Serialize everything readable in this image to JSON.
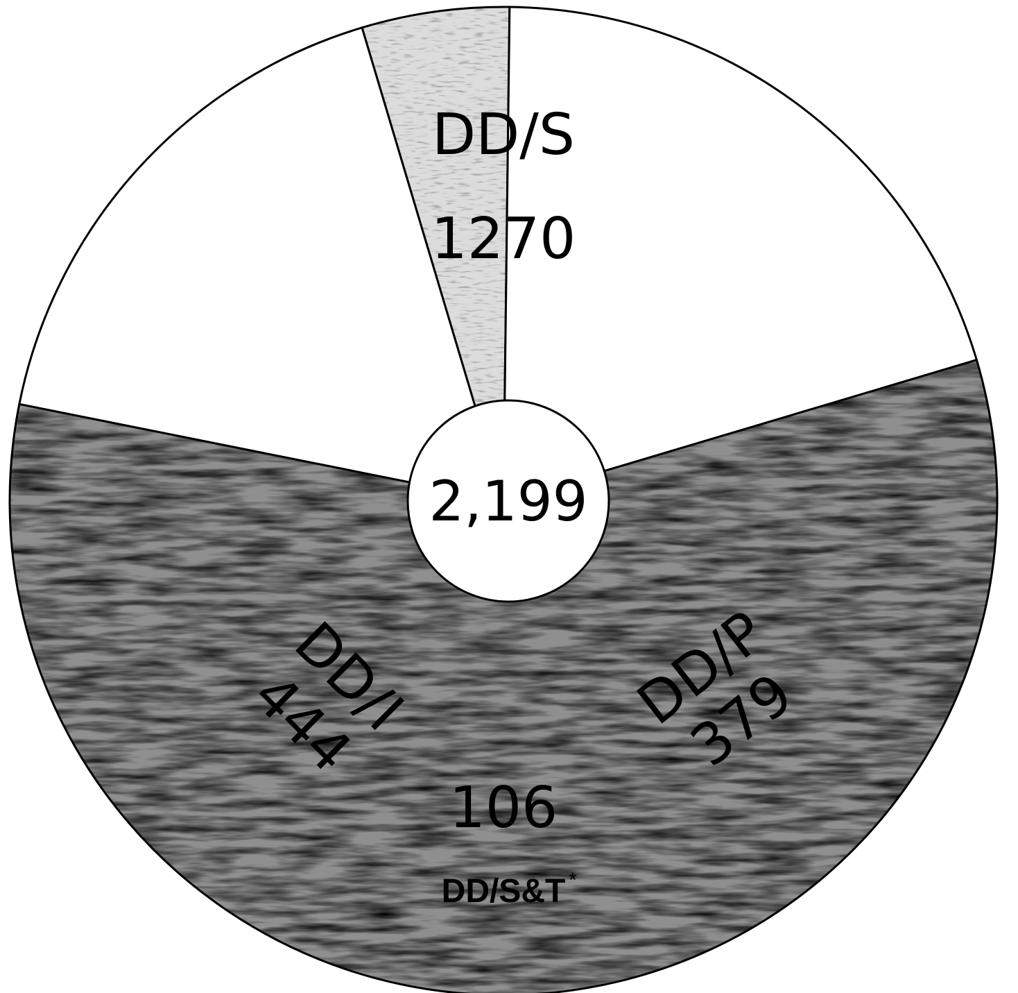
{
  "chart_data": {
    "type": "pie",
    "title": "",
    "total_label": "2,199",
    "slices": [
      {
        "label": "DD/S",
        "value": 1270,
        "display_value": "1270",
        "color": "#8f8f8f",
        "texture": "heavy-stipple"
      },
      {
        "label": "DD/P",
        "value": 379,
        "display_value": "379",
        "color": "#ffffff",
        "texture": "none"
      },
      {
        "label": "DD/S&T",
        "value": 106,
        "display_value": "106",
        "color": "#dcdcdc",
        "texture": "light-stipple",
        "footnote_mark": "*"
      },
      {
        "label": "DD/I",
        "value": 444,
        "display_value": "444",
        "color": "#ffffff",
        "texture": "none"
      }
    ]
  }
}
